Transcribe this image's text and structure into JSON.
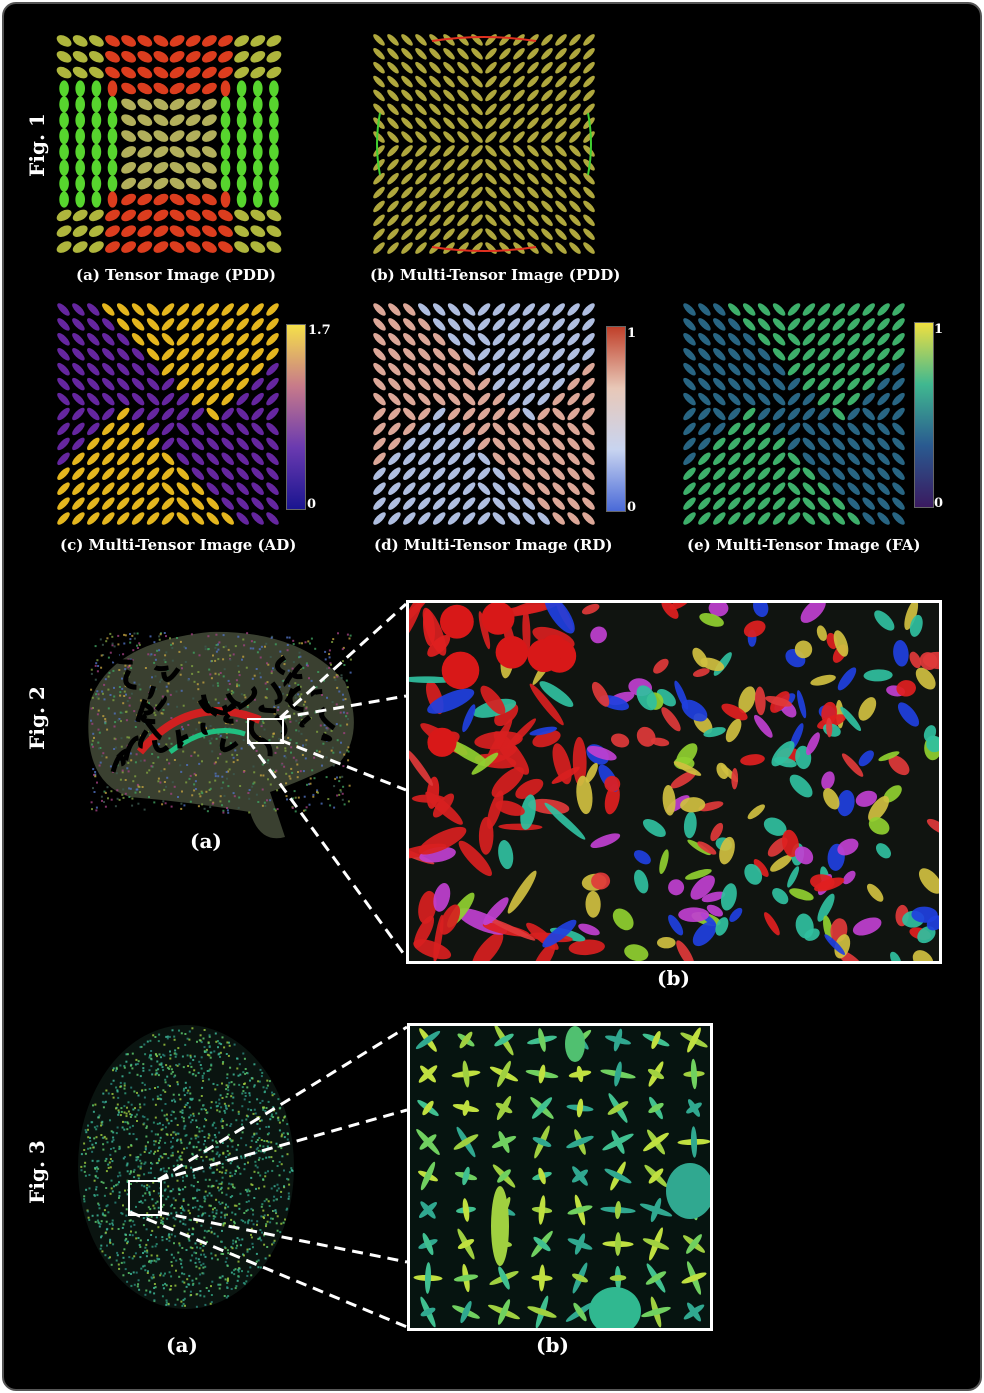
{
  "figures": {
    "fig1": {
      "label": "Fig. 1",
      "panels": [
        {
          "caption": "(a) Tensor Image (PDD)"
        },
        {
          "caption": "(b) Multi-Tensor Image (PDD)"
        },
        {
          "caption": "(c) Multi-Tensor Image (AD)",
          "colorbar": {
            "max": "1.7",
            "min": "0",
            "colors": [
              "#f5e04a",
              "#c77a8a",
              "#6a3ab0",
              "#1a1590"
            ]
          }
        },
        {
          "caption": "(d) Multi-Tensor Image (RD)",
          "colorbar": {
            "max": "1",
            "min": "0",
            "colors": [
              "#c0402a",
              "#e8c8b8",
              "#c8d4f0",
              "#4a6ad8"
            ]
          }
        },
        {
          "caption": "(e) Multi-Tensor Image (FA)",
          "colorbar": {
            "max": "1",
            "min": "0",
            "colors": [
              "#f0e040",
              "#40b890",
              "#2a5a90",
              "#3a1a60"
            ]
          }
        }
      ]
    },
    "fig2": {
      "label": "Fig. 2",
      "panels": [
        {
          "caption": "(a)"
        },
        {
          "caption": "(b)"
        }
      ]
    },
    "fig3": {
      "label": "Fig. 3",
      "panels": [
        {
          "caption": "(a)"
        },
        {
          "caption": "(b)"
        }
      ]
    }
  }
}
